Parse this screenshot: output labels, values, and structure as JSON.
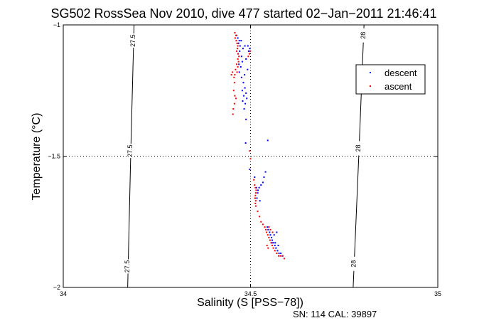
{
  "chart_data": {
    "type": "scatter",
    "title": "SG502 RossSea Nov 2010, dive 477 started 02−Jan−2011 21:46:41",
    "xlabel": "Salinity (S [PSS−78])",
    "ylabel": "Temperature (°C)",
    "xlim": [
      34,
      35
    ],
    "ylim": [
      -2,
      -1
    ],
    "xticks": [
      34,
      34.5,
      35
    ],
    "yticks": [
      -2,
      -1.5,
      -1
    ],
    "xtick_labels": [
      "34",
      "34.5",
      "35"
    ],
    "ytick_labels": [
      "−2",
      "−1.5",
      "−1"
    ],
    "grid": true,
    "legend_position": "top-right",
    "footer": "SN: 114  CAL: 39897",
    "colors": {
      "descent": "#0000ff",
      "ascent": "#ff0000",
      "contour": "#000000",
      "grid": "#000000"
    },
    "contours": [
      {
        "label": "27.5",
        "points": [
          [
            34.189,
            -1.0
          ],
          [
            34.18,
            -1.5
          ],
          [
            34.172,
            -2.0
          ]
        ],
        "label_positions": [
          [
            34.187,
            -1.06
          ],
          [
            34.18,
            -1.48
          ],
          [
            34.172,
            -1.92
          ]
        ]
      },
      {
        "label": "28",
        "points": [
          [
            34.803,
            -1.0
          ],
          [
            34.789,
            -1.5
          ],
          [
            34.774,
            -2.0
          ]
        ],
        "label_positions": [
          [
            34.802,
            -1.04
          ],
          [
            34.789,
            -1.47
          ],
          [
            34.776,
            -1.91
          ]
        ]
      }
    ],
    "series": [
      {
        "name": "descent",
        "points": [
          [
            34.463,
            -1.04
          ],
          [
            34.466,
            -1.05
          ],
          [
            34.47,
            -1.06
          ],
          [
            34.475,
            -1.06
          ],
          [
            34.468,
            -1.07
          ],
          [
            34.472,
            -1.08
          ],
          [
            34.48,
            -1.09
          ],
          [
            34.485,
            -1.08
          ],
          [
            34.471,
            -1.1
          ],
          [
            34.467,
            -1.11
          ],
          [
            34.476,
            -1.12
          ],
          [
            34.488,
            -1.13
          ],
          [
            34.478,
            -1.14
          ],
          [
            34.469,
            -1.15
          ],
          [
            34.474,
            -1.16
          ],
          [
            34.47,
            -1.18
          ],
          [
            34.484,
            -1.19
          ],
          [
            34.492,
            -1.17
          ],
          [
            34.476,
            -1.2
          ],
          [
            34.481,
            -1.22
          ],
          [
            34.485,
            -1.24
          ],
          [
            34.478,
            -1.25
          ],
          [
            34.488,
            -1.26
          ],
          [
            34.482,
            -1.27
          ],
          [
            34.479,
            -1.29
          ],
          [
            34.486,
            -1.3
          ],
          [
            34.49,
            -1.28
          ],
          [
            34.483,
            -1.32
          ],
          [
            34.495,
            -1.1
          ],
          [
            34.498,
            -1.09
          ],
          [
            34.493,
            -1.08
          ],
          [
            34.488,
            -1.36
          ],
          [
            34.487,
            -1.45
          ],
          [
            34.498,
            -1.55
          ],
          [
            34.511,
            -1.58
          ],
          [
            34.516,
            -1.62
          ],
          [
            34.52,
            -1.63
          ],
          [
            34.523,
            -1.62
          ],
          [
            34.528,
            -1.61
          ],
          [
            34.533,
            -1.6
          ],
          [
            34.519,
            -1.64
          ],
          [
            34.517,
            -1.66
          ],
          [
            34.525,
            -1.67
          ],
          [
            34.536,
            -1.58
          ],
          [
            34.54,
            -1.56
          ],
          [
            34.546,
            -1.44
          ],
          [
            34.545,
            -1.77
          ],
          [
            34.547,
            -1.78
          ],
          [
            34.551,
            -1.79
          ],
          [
            34.553,
            -1.8
          ],
          [
            34.556,
            -1.81
          ],
          [
            34.558,
            -1.82
          ],
          [
            34.561,
            -1.83
          ],
          [
            34.565,
            -1.84
          ],
          [
            34.568,
            -1.85
          ],
          [
            34.572,
            -1.86
          ],
          [
            34.576,
            -1.87
          ],
          [
            34.581,
            -1.87
          ],
          [
            34.585,
            -1.88
          ],
          [
            34.563,
            -1.8
          ],
          [
            34.57,
            -1.79
          ],
          [
            34.557,
            -1.83
          ],
          [
            34.566,
            -1.83
          ],
          [
            34.574,
            -1.84
          ]
        ]
      },
      {
        "name": "ascent",
        "points": [
          [
            34.458,
            -1.03
          ],
          [
            34.461,
            -1.04
          ],
          [
            34.459,
            -1.05
          ],
          [
            34.462,
            -1.06
          ],
          [
            34.464,
            -1.07
          ],
          [
            34.466,
            -1.08
          ],
          [
            34.465,
            -1.09
          ],
          [
            34.463,
            -1.1
          ],
          [
            34.467,
            -1.11
          ],
          [
            34.469,
            -1.12
          ],
          [
            34.466,
            -1.13
          ],
          [
            34.468,
            -1.14
          ],
          [
            34.463,
            -1.15
          ],
          [
            34.466,
            -1.16
          ],
          [
            34.46,
            -1.17
          ],
          [
            34.464,
            -1.18
          ],
          [
            34.458,
            -1.19
          ],
          [
            34.456,
            -1.2
          ],
          [
            34.452,
            -1.18
          ],
          [
            34.449,
            -1.19
          ],
          [
            34.457,
            -1.22
          ],
          [
            34.455,
            -1.25
          ],
          [
            34.458,
            -1.27
          ],
          [
            34.461,
            -1.28
          ],
          [
            34.457,
            -1.3
          ],
          [
            34.454,
            -1.32
          ],
          [
            34.453,
            -1.34
          ],
          [
            34.499,
            -1.1
          ],
          [
            34.497,
            -1.11
          ],
          [
            34.494,
            -1.12
          ],
          [
            34.498,
            -1.48
          ],
          [
            34.5,
            -1.51
          ],
          [
            34.509,
            -1.59
          ],
          [
            34.511,
            -1.61
          ],
          [
            34.513,
            -1.62
          ],
          [
            34.515,
            -1.63
          ],
          [
            34.514,
            -1.64
          ],
          [
            34.513,
            -1.65
          ],
          [
            34.512,
            -1.66
          ],
          [
            34.514,
            -1.67
          ],
          [
            34.513,
            -1.68
          ],
          [
            34.512,
            -1.66
          ],
          [
            34.514,
            -1.69
          ],
          [
            34.519,
            -1.71
          ],
          [
            34.524,
            -1.73
          ],
          [
            34.528,
            -1.75
          ],
          [
            34.533,
            -1.76
          ],
          [
            34.538,
            -1.77
          ],
          [
            34.541,
            -1.78
          ],
          [
            34.543,
            -1.79
          ],
          [
            34.546,
            -1.8
          ],
          [
            34.549,
            -1.81
          ],
          [
            34.552,
            -1.82
          ],
          [
            34.555,
            -1.83
          ],
          [
            34.558,
            -1.84
          ],
          [
            34.561,
            -1.85
          ],
          [
            34.565,
            -1.86
          ],
          [
            34.57,
            -1.87
          ],
          [
            34.575,
            -1.88
          ],
          [
            34.58,
            -1.88
          ],
          [
            34.586,
            -1.88
          ],
          [
            34.59,
            -1.89
          ],
          [
            34.553,
            -1.78
          ],
          [
            34.559,
            -1.79
          ],
          [
            34.549,
            -1.77
          ],
          [
            34.544,
            -1.84
          ],
          [
            34.547,
            -1.85
          ]
        ]
      }
    ]
  }
}
